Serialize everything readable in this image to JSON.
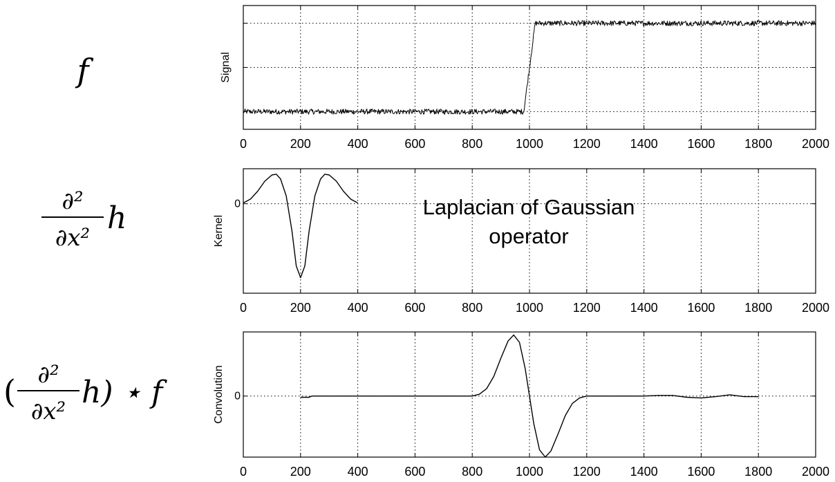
{
  "equations": {
    "eq1": {
      "f": "f"
    },
    "eq2": {
      "num": "∂²",
      "den": "∂x²",
      "h": "h"
    },
    "eq3": {
      "open": "(",
      "num": "∂²",
      "den": "∂x²",
      "tail": "h) ⋆ f"
    }
  },
  "chart_data": [
    {
      "type": "line",
      "ylabel": "Signal",
      "xlim": [
        0,
        2000
      ],
      "ylim": [
        -0.2,
        1.2
      ],
      "xticks": [
        "0",
        "200",
        "400",
        "600",
        "800",
        "1000",
        "1200",
        "1400",
        "1600",
        "1800",
        "2000"
      ],
      "yticks": [
        0,
        0.5,
        1
      ],
      "yticklabels": [],
      "grid": true,
      "series": [
        {
          "x": [
            0,
            980,
            1020,
            2000
          ],
          "y": [
            0,
            0,
            1,
            1
          ],
          "noise": 0.03
        }
      ]
    },
    {
      "type": "line",
      "ylabel": "Kernel",
      "xlim": [
        0,
        2000
      ],
      "ylim": [
        -1.15,
        0.45
      ],
      "xticks": [
        "0",
        "200",
        "400",
        "600",
        "800",
        "1000",
        "1200",
        "1400",
        "1600",
        "1800",
        "2000"
      ],
      "yticks": [
        0
      ],
      "yticklabels": [
        "0"
      ],
      "grid": true,
      "annotation": [
        "Laplacian of Gaussian",
        "operator"
      ],
      "series": [
        {
          "x": [
            0,
            25,
            50,
            75,
            100,
            115,
            130,
            150,
            170,
            185,
            200,
            215,
            230,
            250,
            270,
            285,
            300,
            325,
            350,
            375,
            400
          ],
          "y": [
            0.01,
            0.06,
            0.16,
            0.29,
            0.37,
            0.38,
            0.32,
            0.1,
            -0.35,
            -0.8,
            -0.95,
            -0.8,
            -0.35,
            0.1,
            0.32,
            0.38,
            0.37,
            0.29,
            0.16,
            0.06,
            0.01
          ]
        }
      ]
    },
    {
      "type": "line",
      "ylabel": "Convolution",
      "xlim": [
        0,
        2000
      ],
      "ylim": [
        -1.0,
        1.05
      ],
      "xticks": [
        "0",
        "200",
        "400",
        "600",
        "800",
        "1000",
        "1200",
        "1400",
        "1600",
        "1800",
        "2000"
      ],
      "yticks": [
        0
      ],
      "yticklabels": [
        "0"
      ],
      "grid": true,
      "series": [
        {
          "x": [
            200,
            230,
            240,
            800,
            825,
            850,
            875,
            900,
            925,
            945,
            965,
            985,
            1000,
            1015,
            1035,
            1055,
            1075,
            1100,
            1125,
            1150,
            1175,
            1200,
            1300,
            1400,
            1450,
            1500,
            1550,
            1600,
            1650,
            1700,
            1750,
            1800
          ],
          "y": [
            -0.02,
            -0.02,
            0,
            0,
            0.03,
            0.12,
            0.32,
            0.62,
            0.9,
            1.0,
            0.88,
            0.45,
            0.0,
            -0.45,
            -0.88,
            -1.0,
            -0.9,
            -0.62,
            -0.32,
            -0.12,
            -0.03,
            0,
            0,
            0.0,
            0.01,
            0.01,
            -0.02,
            -0.03,
            -0.01,
            0.02,
            -0.01,
            -0.01
          ]
        }
      ]
    }
  ]
}
